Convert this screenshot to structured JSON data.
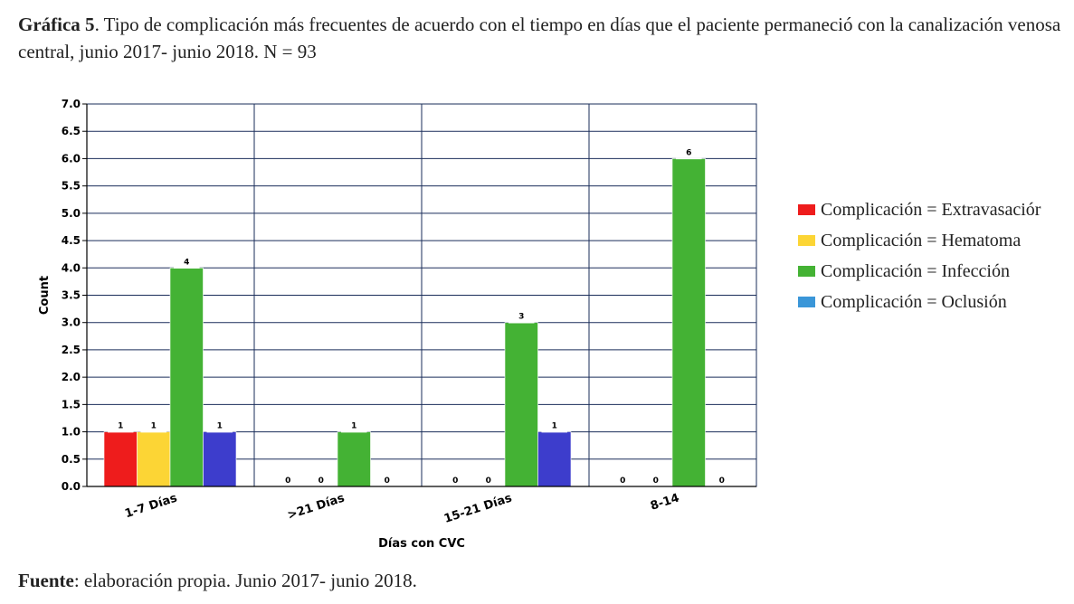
{
  "caption": {
    "label": "Gráfica 5",
    "text": ". Tipo de complicación más frecuentes de acuerdo con el tiempo en días que el paciente permaneció con la canalización venosa central, junio 2017- junio 2018. N = 93"
  },
  "source": {
    "label": "Fuente",
    "text": ": elaboración propia. Junio 2017- junio 2018."
  },
  "chart_data": {
    "type": "bar",
    "xlabel": "Días con CVC",
    "ylabel": "Count",
    "ylim": [
      0,
      7
    ],
    "yticks": [
      "0.0",
      "0.5",
      "1.0",
      "1.5",
      "2.0",
      "2.5",
      "3.0",
      "3.5",
      "4.0",
      "4.5",
      "5.0",
      "5.5",
      "6.0",
      "6.5",
      "7.0"
    ],
    "grid": true,
    "legend_position": "right",
    "categories": [
      "1-7 Días",
      ">21 Días",
      "15-21 Días",
      "8-14"
    ],
    "series": [
      {
        "name": "Complicación = Extravasaciór",
        "color": "#ee1c1c",
        "values": [
          1,
          0,
          0,
          0
        ]
      },
      {
        "name": "Complicación = Hematoma",
        "color": "#fcd535",
        "values": [
          1,
          0,
          0,
          0
        ]
      },
      {
        "name": "Complicación = Infección",
        "color": "#44b234",
        "values": [
          4,
          1,
          3,
          6
        ]
      },
      {
        "name": "Complicación = Oclusión",
        "color": "#3d3dcc",
        "legend_color": "#3a96d8",
        "values": [
          1,
          0,
          1,
          0
        ]
      }
    ]
  }
}
